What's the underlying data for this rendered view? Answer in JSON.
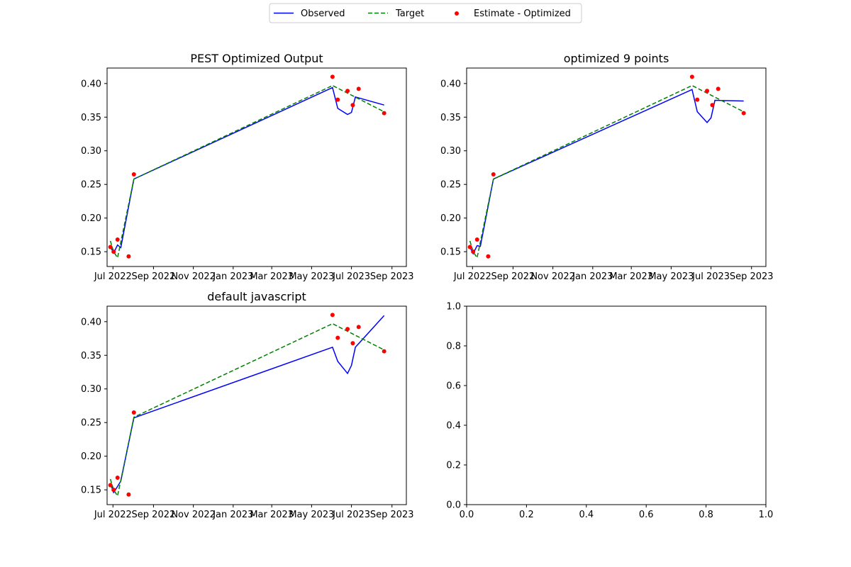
{
  "legend": {
    "placement": "top-center",
    "entries": [
      {
        "label": "Observed",
        "color": "#0000ff",
        "style": "solid-line"
      },
      {
        "label": "Target",
        "color": "#008000",
        "style": "dashed-line"
      },
      {
        "label": "Estimate - Optimized",
        "color": "#ff0000",
        "style": "dot"
      }
    ]
  },
  "chart_data": [
    {
      "type": "line",
      "title": "PEST Optimized Output",
      "xlabel": "",
      "ylabel": "",
      "x_ticks": [
        "2022-07-01",
        "2022-09-01",
        "2022-11-01",
        "2023-01-01",
        "2023-03-01",
        "2023-05-01",
        "2023-07-01",
        "2023-09-01"
      ],
      "x_tick_labels": [
        "Jul 2022",
        "Sep 2022",
        "Nov 2022",
        "Jan 2023",
        "Mar 2023",
        "May 2023",
        "Jul 2023",
        "Sep 2023"
      ],
      "xlim": [
        "2022-06-22",
        "2023-09-23"
      ],
      "y_ticks": [
        0.15,
        0.2,
        0.25,
        0.3,
        0.35,
        0.4
      ],
      "y_tick_labels": [
        "0.15",
        "0.20",
        "0.25",
        "0.30",
        "0.35",
        "0.40"
      ],
      "ylim": [
        0.128,
        0.423
      ],
      "grid": false,
      "series": [
        {
          "name": "Observed",
          "color": "#0000ff",
          "dash": "",
          "x": [
            "2022-06-27",
            "2022-07-02",
            "2022-07-08",
            "2022-07-13",
            "2022-08-02",
            "2023-06-02",
            "2023-06-10",
            "2023-06-25",
            "2023-07-01",
            "2023-07-07",
            "2023-08-20"
          ],
          "y": [
            0.158,
            0.148,
            0.16,
            0.156,
            0.258,
            0.394,
            0.363,
            0.354,
            0.357,
            0.38,
            0.368
          ]
        },
        {
          "name": "Target",
          "color": "#008000",
          "dash": "6,3",
          "x": [
            "2022-06-27",
            "2022-07-02",
            "2022-07-08",
            "2022-08-02",
            "2023-06-02",
            "2023-08-20"
          ],
          "y": [
            0.166,
            0.15,
            0.141,
            0.258,
            0.397,
            0.358
          ]
        },
        {
          "name": "Estimate - Optimized",
          "type": "scatter",
          "color": "#ff0000",
          "x": [
            "2022-06-27",
            "2022-07-02",
            "2022-07-08",
            "2022-07-25",
            "2022-08-02",
            "2023-06-02",
            "2023-06-10",
            "2023-06-25",
            "2023-07-03",
            "2023-07-12",
            "2023-08-20"
          ],
          "y": [
            0.157,
            0.15,
            0.168,
            0.143,
            0.265,
            0.41,
            0.376,
            0.389,
            0.368,
            0.392,
            0.356
          ]
        }
      ]
    },
    {
      "type": "line",
      "title": "optimized 9 points",
      "xlabel": "",
      "ylabel": "",
      "x_ticks": [
        "2022-07-01",
        "2022-09-01",
        "2022-11-01",
        "2023-01-01",
        "2023-03-01",
        "2023-05-01",
        "2023-07-01",
        "2023-09-01"
      ],
      "x_tick_labels": [
        "Jul 2022",
        "Sep 2022",
        "Nov 2022",
        "Jan 2023",
        "Mar 2023",
        "May 2023",
        "Jul 2023",
        "Sep 2023"
      ],
      "xlim": [
        "2022-06-22",
        "2023-09-23"
      ],
      "y_ticks": [
        0.15,
        0.2,
        0.25,
        0.3,
        0.35,
        0.4
      ],
      "y_tick_labels": [
        "0.15",
        "0.20",
        "0.25",
        "0.30",
        "0.35",
        "0.40"
      ],
      "ylim": [
        0.128,
        0.423
      ],
      "grid": false,
      "series": [
        {
          "name": "Observed",
          "color": "#0000ff",
          "dash": "",
          "x": [
            "2022-06-27",
            "2022-07-02",
            "2022-07-08",
            "2022-07-13",
            "2022-08-02",
            "2023-06-02",
            "2023-06-10",
            "2023-06-25",
            "2023-07-01",
            "2023-07-07",
            "2023-08-20"
          ],
          "y": [
            0.157,
            0.147,
            0.159,
            0.158,
            0.258,
            0.391,
            0.358,
            0.342,
            0.349,
            0.375,
            0.374
          ]
        },
        {
          "name": "Target",
          "color": "#008000",
          "dash": "6,3",
          "x": [
            "2022-06-27",
            "2022-07-02",
            "2022-07-08",
            "2022-08-02",
            "2023-06-02",
            "2023-08-20"
          ],
          "y": [
            0.166,
            0.15,
            0.141,
            0.258,
            0.397,
            0.358
          ]
        },
        {
          "name": "Estimate - Optimized",
          "type": "scatter",
          "color": "#ff0000",
          "x": [
            "2022-06-27",
            "2022-07-02",
            "2022-07-08",
            "2022-07-25",
            "2022-08-02",
            "2023-06-02",
            "2023-06-10",
            "2023-06-25",
            "2023-07-03",
            "2023-07-12",
            "2023-08-20"
          ],
          "y": [
            0.157,
            0.15,
            0.168,
            0.143,
            0.265,
            0.41,
            0.376,
            0.389,
            0.368,
            0.392,
            0.356
          ]
        }
      ]
    },
    {
      "type": "line",
      "title": "default javascript",
      "xlabel": "",
      "ylabel": "",
      "x_ticks": [
        "2022-07-01",
        "2022-09-01",
        "2022-11-01",
        "2023-01-01",
        "2023-03-01",
        "2023-05-01",
        "2023-07-01",
        "2023-09-01"
      ],
      "x_tick_labels": [
        "Jul 2022",
        "Sep 2022",
        "Nov 2022",
        "Jan 2023",
        "Mar 2023",
        "May 2023",
        "Jul 2023",
        "Sep 2023"
      ],
      "xlim": [
        "2022-06-22",
        "2023-09-23"
      ],
      "y_ticks": [
        0.15,
        0.2,
        0.25,
        0.3,
        0.35,
        0.4
      ],
      "y_tick_labels": [
        "0.15",
        "0.20",
        "0.25",
        "0.30",
        "0.35",
        "0.40"
      ],
      "ylim": [
        0.128,
        0.423
      ],
      "grid": false,
      "series": [
        {
          "name": "Observed",
          "color": "#0000ff",
          "dash": "",
          "x": [
            "2022-06-27",
            "2022-07-02",
            "2022-07-08",
            "2022-07-13",
            "2022-08-02",
            "2023-06-02",
            "2023-06-10",
            "2023-06-25",
            "2023-07-01",
            "2023-07-07",
            "2023-08-20"
          ],
          "y": [
            0.16,
            0.146,
            0.155,
            0.163,
            0.257,
            0.362,
            0.341,
            0.323,
            0.335,
            0.362,
            0.409
          ]
        },
        {
          "name": "Target",
          "color": "#008000",
          "dash": "6,3",
          "x": [
            "2022-06-27",
            "2022-07-02",
            "2022-07-08",
            "2022-08-02",
            "2023-06-02",
            "2023-08-20"
          ],
          "y": [
            0.166,
            0.15,
            0.141,
            0.258,
            0.397,
            0.358
          ]
        },
        {
          "name": "Estimate - Optimized",
          "type": "scatter",
          "color": "#ff0000",
          "x": [
            "2022-06-27",
            "2022-07-02",
            "2022-07-08",
            "2022-07-25",
            "2022-08-02",
            "2023-06-02",
            "2023-06-10",
            "2023-06-25",
            "2023-07-03",
            "2023-07-12",
            "2023-08-20"
          ],
          "y": [
            0.157,
            0.15,
            0.168,
            0.143,
            0.265,
            0.41,
            0.376,
            0.389,
            0.368,
            0.392,
            0.356
          ]
        }
      ]
    },
    {
      "type": "line",
      "title": "",
      "xlabel": "",
      "ylabel": "",
      "x_ticks": [
        0.0,
        0.2,
        0.4,
        0.6,
        0.8,
        1.0
      ],
      "x_tick_labels": [
        "0.0",
        "0.2",
        "0.4",
        "0.6",
        "0.8",
        "1.0"
      ],
      "xlim": [
        0,
        1
      ],
      "y_ticks": [
        0.0,
        0.2,
        0.4,
        0.6,
        0.8,
        1.0
      ],
      "y_tick_labels": [
        "0.0",
        "0.2",
        "0.4",
        "0.6",
        "0.8",
        "1.0"
      ],
      "ylim": [
        0,
        1
      ],
      "grid": false,
      "series": []
    }
  ]
}
